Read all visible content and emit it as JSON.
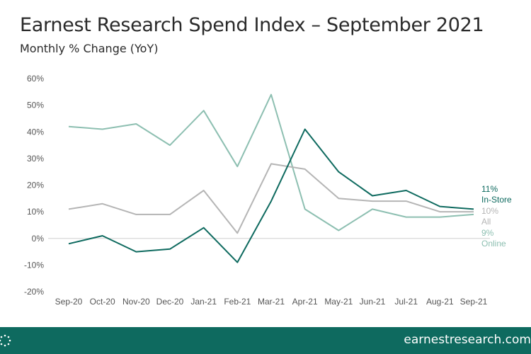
{
  "header": {
    "title": "Earnest Research Spend Index – September 2021",
    "subtitle": "Monthly % Change (YoY)"
  },
  "footer": {
    "url": "earnestresearch.com",
    "logo_icon": "dotted-circle-icon",
    "background": "#0e6a5f"
  },
  "chart_data": {
    "type": "line",
    "title": "Earnest Research Spend Index – September 2021",
    "subtitle": "Monthly % Change (YoY)",
    "xlabel": "",
    "ylabel": "",
    "categories": [
      "Sep-20",
      "Oct-20",
      "Nov-20",
      "Dec-20",
      "Jan-21",
      "Feb-21",
      "Mar-21",
      "Apr-21",
      "May-21",
      "Jun-21",
      "Jul-21",
      "Aug-21",
      "Sep-21"
    ],
    "ylim": [
      -20,
      60
    ],
    "yticks": [
      60,
      50,
      40,
      30,
      20,
      10,
      0,
      -10,
      -20
    ],
    "ytick_labels": [
      "60%",
      "50%",
      "40%",
      "30%",
      "20%",
      "10%",
      "0%",
      "-10%",
      "-20%"
    ],
    "grid": false,
    "legend": "end-of-line labels",
    "series": [
      {
        "name": "Online",
        "color": "#8dbfb1",
        "values": [
          42,
          41,
          43,
          35,
          48,
          27,
          54,
          11,
          3,
          11,
          8,
          8,
          9
        ],
        "end_value_label": "9%",
        "end_name_label": "Online"
      },
      {
        "name": "All",
        "color": "#b5b5b5",
        "values": [
          11,
          13,
          9,
          9,
          18,
          2,
          28,
          26,
          15,
          14,
          14,
          10,
          10
        ],
        "end_value_label": "10%",
        "end_name_label": "All"
      },
      {
        "name": "In-Store",
        "color": "#0e6a5f",
        "values": [
          -2,
          1,
          -5,
          -4,
          4,
          -9,
          14,
          41,
          25,
          16,
          18,
          12,
          11
        ],
        "end_value_label": "11%",
        "end_name_label": "In-Store"
      }
    ]
  }
}
